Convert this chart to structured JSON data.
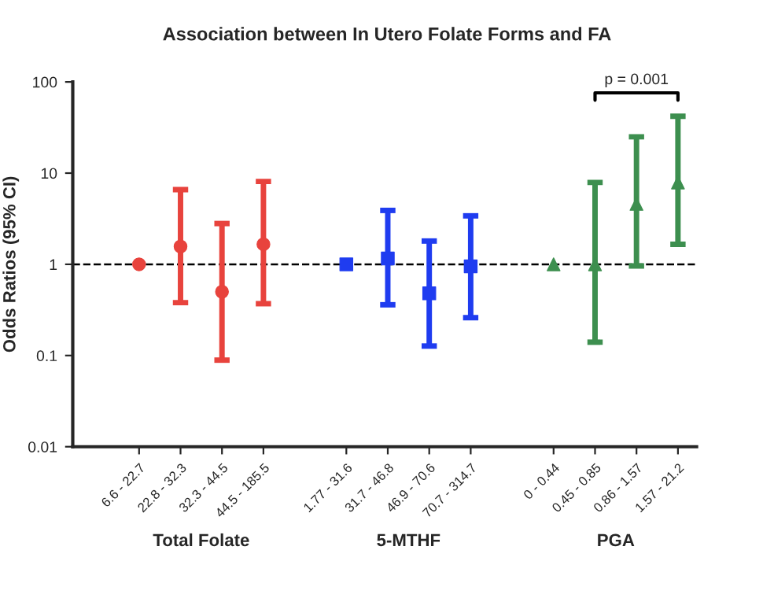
{
  "chart_data": {
    "type": "scatter",
    "title": "Association between In Utero Folate Forms and FA",
    "ylabel": "Odds Ratios (95% CI)",
    "categories": [
      "6.6 - 22.7",
      "22.8 - 32.3",
      "32.3 - 44.5",
      "44.5 - 185.5",
      null,
      "1.77 - 31.6",
      "31.7 - 46.8",
      "46.9 - 70.6",
      "70.7 - 314.7",
      null,
      "0 - 0.44",
      "0.45 - 0.85",
      "0.86 - 1.57",
      "1.57 - 21.2"
    ],
    "series": [
      {
        "color": "#e8433d",
        "marker": "circle",
        "values": [
          1,
          1.57,
          0.5,
          1.66,
          null,
          null,
          null,
          null,
          null,
          null,
          null,
          null,
          null,
          null
        ],
        "errors": [
          null,
          [
            0.38,
            6.6
          ],
          [
            0.089,
            2.8
          ],
          [
            0.37,
            8.1
          ],
          null,
          null,
          null,
          null,
          null,
          null,
          null,
          null,
          null,
          null
        ]
      },
      {
        "color": "#1f3cf0",
        "marker": "square",
        "values": [
          null,
          null,
          null,
          null,
          null,
          1,
          1.16,
          0.48,
          0.95,
          null,
          null,
          null,
          null,
          null
        ],
        "errors": [
          null,
          null,
          null,
          null,
          null,
          null,
          [
            0.36,
            3.9
          ],
          [
            0.127,
            1.8
          ],
          [
            0.26,
            3.4
          ],
          null,
          null,
          null,
          null,
          null
        ]
      },
      {
        "color": "#3d8f4f",
        "marker": "triangle",
        "values": [
          null,
          null,
          null,
          null,
          null,
          null,
          null,
          null,
          null,
          null,
          1,
          1,
          4.6,
          7.9
        ],
        "errors": [
          null,
          null,
          null,
          null,
          null,
          null,
          null,
          null,
          null,
          null,
          null,
          [
            0.14,
            7.9
          ],
          [
            0.96,
            25
          ],
          [
            1.66,
            42
          ]
        ]
      }
    ],
    "log": true,
    "ylim": [
      0.01,
      100
    ],
    "yticks": [
      0.01,
      0.1,
      1,
      10,
      100
    ],
    "grid": false,
    "legend": false,
    "ref_lines": [
      {
        "axis": "y",
        "value": 1,
        "color": "#000000",
        "line_style": "dashed"
      }
    ],
    "annotations": [
      "Total Folate",
      "5-MTHF",
      "PGA",
      "p = 0.001"
    ]
  }
}
